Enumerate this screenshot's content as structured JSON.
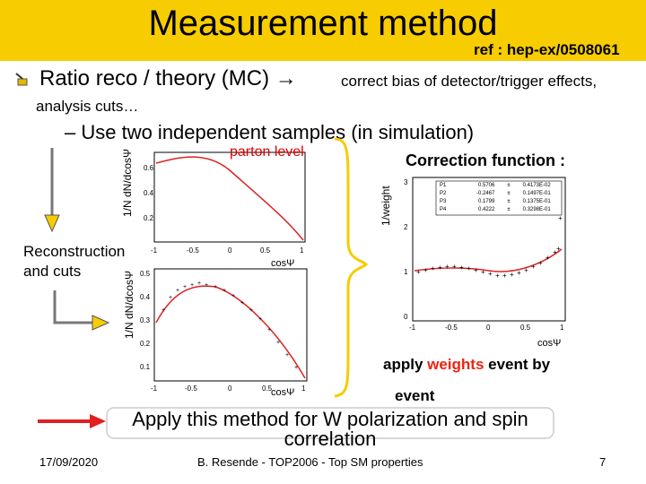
{
  "slide": {
    "title": "Measurement method",
    "ref": "ref : hep-ex/0508061",
    "bullet1_main": "Ratio reco / theory (MC) →",
    "bullet1_tail": "correct bias of detector/trigger effects,",
    "bullet1_cont": "analysis cuts…",
    "sub_bullet": "– Use two independent samples (in simulation)",
    "parton_label": "parton level",
    "correction_title": "Correction function :",
    "reco_line1": "Reconstruction",
    "reco_line2": "and cuts",
    "ylabel_dN": "1/N dN/dcosΨ",
    "ylabel_weight": "1/weight",
    "xlabel_cos": "cosΨ",
    "apply_prefix": "apply ",
    "apply_weights": "weights",
    "apply_suffix": " event by",
    "apply_line2": "event",
    "method_text": "Apply this method for W polarization and spin correlation",
    "date": "17/09/2020",
    "footer": "B. Resende - TOP2006 - Top SM properties",
    "page": "7"
  },
  "fit_table": {
    "rows": [
      {
        "name": "P1",
        "value": "0.5706",
        "error": "0.4173E-02"
      },
      {
        "name": "P2",
        "value": "-0.2467",
        "error": "0.1497E-01"
      },
      {
        "name": "P3",
        "value": "0.1799",
        "error": "0.1375E-01"
      },
      {
        "name": "P4",
        "value": "0.4222",
        "error": "0.3298E-01"
      }
    ]
  },
  "colors": {
    "title_bar": "#f7cc00",
    "curve": "#dd2222",
    "arrow": "#e02020",
    "brace": "#f7cc00"
  }
}
